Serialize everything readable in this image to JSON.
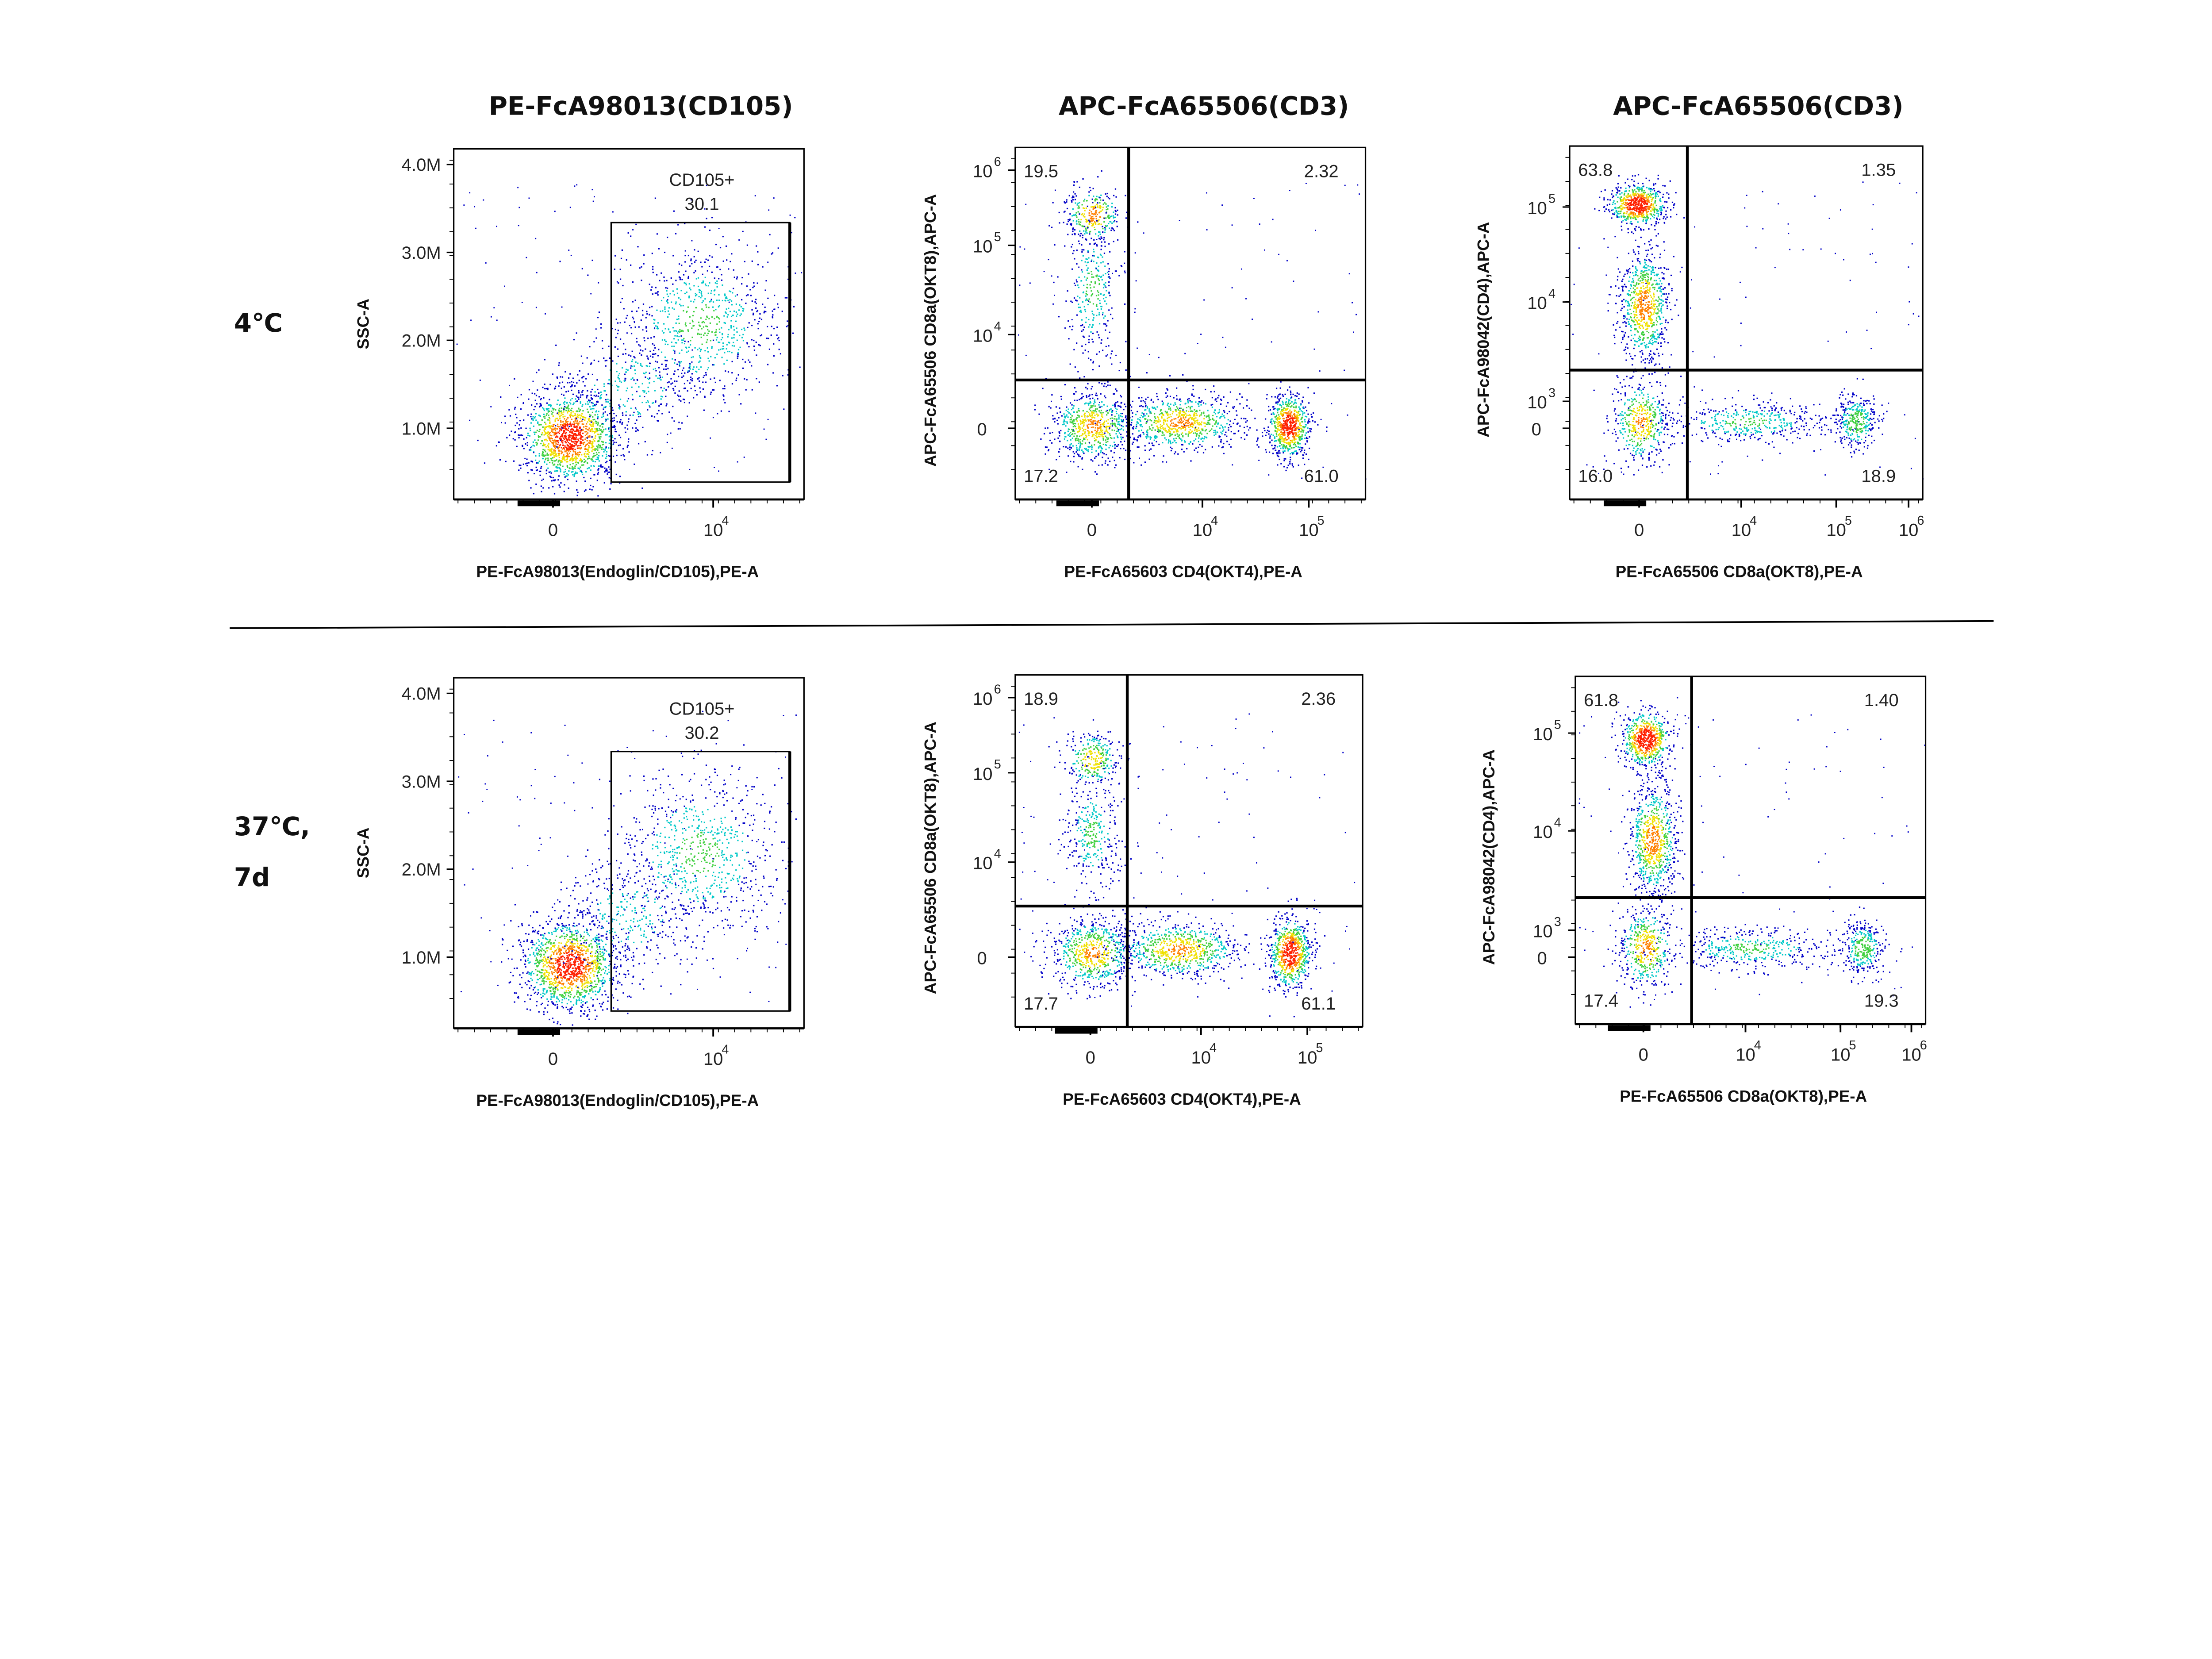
{
  "row_labels": {
    "row1": "4℃",
    "row2_line1": "37℃,",
    "row2_line2": "7d"
  },
  "colors": {
    "low": "#0000c8",
    "mid": "#00c8c8",
    "green": "#40d040",
    "yellow": "#f0e000",
    "high": "#ff2000",
    "axis": "#000000"
  },
  "chart_data": [
    {
      "type": "scatter",
      "id": "cd105_4c",
      "title": "PE-FcA98013(CD105)",
      "xlabel": "PE-FcA98013(Endoglin/CD105),PE-A",
      "ylabel": "SSC-A",
      "yticks": [
        "4.0M",
        "3.0M",
        "2.0M",
        "1.0M"
      ],
      "xticks": [
        {
          "base": "0",
          "exp": ""
        },
        {
          "base": "10",
          "exp": "4"
        }
      ],
      "gate": {
        "name": "CD105+",
        "percent": "30.1"
      }
    },
    {
      "type": "scatter",
      "id": "cd4cd8_4c",
      "title": "APC-FcA65506(CD3)",
      "xlabel": "PE-FcA65603 CD4(OKT4),PE-A",
      "ylabel": "APC-FcA65506 CD8a(OKT8),APC-A",
      "yticks": [
        {
          "base": "10",
          "exp": "6"
        },
        {
          "base": "10",
          "exp": "5"
        },
        {
          "base": "10",
          "exp": "4"
        },
        {
          "base": "0",
          "exp": ""
        }
      ],
      "xticks": [
        {
          "base": "0",
          "exp": ""
        },
        {
          "base": "10",
          "exp": "4"
        },
        {
          "base": "10",
          "exp": "5"
        }
      ],
      "quadrants": {
        "upper_left": "19.5",
        "upper_right": "2.32",
        "lower_left": "17.2",
        "lower_right": "61.0"
      }
    },
    {
      "type": "scatter",
      "id": "cd8cd4_4c",
      "title": "APC-FcA65506(CD3)",
      "xlabel": "PE-FcA65506 CD8a(OKT8),PE-A",
      "ylabel": "APC-FcA98042(CD4),APC-A",
      "yticks": [
        {
          "base": "10",
          "exp": "5"
        },
        {
          "base": "10",
          "exp": "4"
        },
        {
          "base": "10",
          "exp": "3"
        },
        {
          "base": "0",
          "exp": ""
        }
      ],
      "xticks": [
        {
          "base": "0",
          "exp": ""
        },
        {
          "base": "10",
          "exp": "4"
        },
        {
          "base": "10",
          "exp": "5"
        },
        {
          "base": "10",
          "exp": "6"
        }
      ],
      "quadrants": {
        "upper_left": "63.8",
        "upper_right": "1.35",
        "lower_left": "16.0",
        "lower_right": "18.9"
      }
    },
    {
      "type": "scatter",
      "id": "cd105_37c",
      "title": "",
      "xlabel": "PE-FcA98013(Endoglin/CD105),PE-A",
      "ylabel": "SSC-A",
      "yticks": [
        "4.0M",
        "3.0M",
        "2.0M",
        "1.0M"
      ],
      "xticks": [
        {
          "base": "0",
          "exp": ""
        },
        {
          "base": "10",
          "exp": "4"
        }
      ],
      "gate": {
        "name": "CD105+",
        "percent": "30.2"
      }
    },
    {
      "type": "scatter",
      "id": "cd4cd8_37c",
      "title": "",
      "xlabel": "PE-FcA65603 CD4(OKT4),PE-A",
      "ylabel": "APC-FcA65506 CD8a(OKT8),APC-A",
      "yticks": [
        {
          "base": "10",
          "exp": "6"
        },
        {
          "base": "10",
          "exp": "5"
        },
        {
          "base": "10",
          "exp": "4"
        },
        {
          "base": "0",
          "exp": ""
        }
      ],
      "xticks": [
        {
          "base": "0",
          "exp": ""
        },
        {
          "base": "10",
          "exp": "4"
        },
        {
          "base": "10",
          "exp": "5"
        }
      ],
      "quadrants": {
        "upper_left": "18.9",
        "upper_right": "2.36",
        "lower_left": "17.7",
        "lower_right": "61.1"
      }
    },
    {
      "type": "scatter",
      "id": "cd8cd4_37c",
      "title": "",
      "xlabel": "PE-FcA65506 CD8a(OKT8),PE-A",
      "ylabel": "APC-FcA98042(CD4),APC-A",
      "yticks": [
        {
          "base": "10",
          "exp": "5"
        },
        {
          "base": "10",
          "exp": "4"
        },
        {
          "base": "10",
          "exp": "3"
        },
        {
          "base": "0",
          "exp": ""
        }
      ],
      "xticks": [
        {
          "base": "0",
          "exp": ""
        },
        {
          "base": "10",
          "exp": "4"
        },
        {
          "base": "10",
          "exp": "5"
        },
        {
          "base": "10",
          "exp": "6"
        }
      ],
      "quadrants": {
        "upper_left": "61.8",
        "upper_right": "1.40",
        "lower_left": "17.4",
        "lower_right": "19.3"
      }
    }
  ]
}
